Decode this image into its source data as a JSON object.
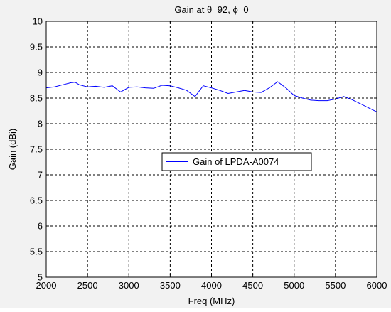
{
  "chart_data": {
    "type": "line",
    "title": "Gain at θ=92, ϕ=0",
    "xlabel": "Freq (MHz)",
    "ylabel": "Gain (dBi)",
    "xlim": [
      2000,
      6000
    ],
    "ylim": [
      5,
      10
    ],
    "xticks": [
      2000,
      2500,
      3000,
      3500,
      4000,
      4500,
      5000,
      5500,
      6000
    ],
    "yticks": [
      5,
      5.5,
      6,
      6.5,
      7,
      7.5,
      8,
      8.5,
      9,
      9.5,
      10
    ],
    "grid": true,
    "legend_position": "center",
    "series": [
      {
        "name": "Gain of LPDA-A0074",
        "color": "#0000ff",
        "x": [
          2000,
          2100,
          2200,
          2300,
          2350,
          2400,
          2500,
          2600,
          2700,
          2800,
          2900,
          3000,
          3100,
          3200,
          3300,
          3400,
          3500,
          3600,
          3700,
          3800,
          3900,
          4000,
          4100,
          4200,
          4300,
          4400,
          4500,
          4600,
          4700,
          4800,
          4900,
          5000,
          5100,
          5200,
          5300,
          5400,
          5500,
          5600,
          5700,
          5800,
          5900,
          6000
        ],
        "y": [
          8.7,
          8.72,
          8.76,
          8.8,
          8.81,
          8.76,
          8.72,
          8.73,
          8.71,
          8.74,
          8.62,
          8.71,
          8.72,
          8.7,
          8.69,
          8.75,
          8.74,
          8.7,
          8.65,
          8.53,
          8.74,
          8.7,
          8.65,
          8.59,
          8.62,
          8.65,
          8.62,
          8.61,
          8.7,
          8.82,
          8.7,
          8.55,
          8.5,
          8.46,
          8.45,
          8.45,
          8.48,
          8.53,
          8.47,
          8.39,
          8.31,
          8.23
        ]
      }
    ]
  }
}
